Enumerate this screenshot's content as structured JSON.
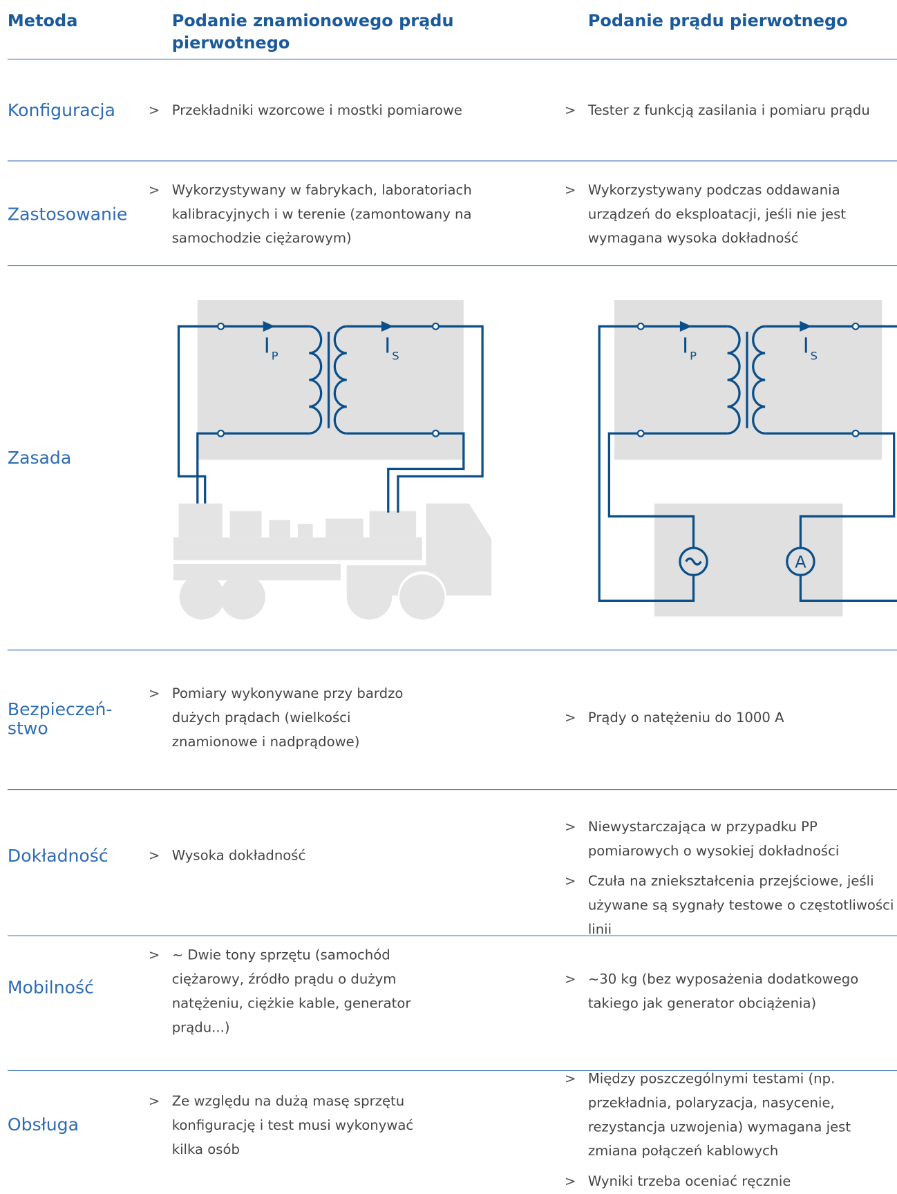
{
  "header": {
    "method": "Metoda",
    "col1": "Podanie znamionowego prądu pierwotnego",
    "col2": "Podanie prądu pierwotnego"
  },
  "bullet": ">",
  "rows": [
    {
      "label": "Konfiguracja",
      "col1": [
        "Przekładniki wzorcowe i mostki pomiarowe"
      ],
      "col2": [
        "Tester z funkcją zasilania i pomiaru prądu"
      ]
    },
    {
      "label": "Zastosowanie",
      "col1": [
        "Wykorzystywany w fabrykach, laboratoriach kalibracyjnych i w terenie (zamontowany na samochodzie ciężarowym)"
      ],
      "col2": [
        "Wykorzystywany podczas oddawania urządzeń do eksploatacji, jeśli nie jest wymagana wysoka dokładność"
      ]
    },
    {
      "label": "Zasada",
      "diagram": {
        "primary": {
          "symbol": "I",
          "index": "P"
        },
        "secondary": {
          "symbol": "I",
          "index": "S"
        },
        "meter": "A"
      }
    },
    {
      "label": "Bezpieczeń-\nstwo",
      "col1": [
        "Pomiary wykonywane przy bardzo dużych prądach (wielkości znamionowe i nadprądowe)"
      ],
      "col2": [
        "Prądy o natężeniu do 1000 A"
      ]
    },
    {
      "label": "Dokładność",
      "col1": [
        "Wysoka dokładność"
      ],
      "col2": [
        "Niewystarczająca w przypadku PP pomiarowych o wysokiej dokładności",
        "Czuła na zniekształcenia przejściowe, jeśli używane są sygnały testowe o częstotliwości linii"
      ]
    },
    {
      "label": "Mobilność",
      "col1": [
        "~ Dwie tony sprzętu (samochód ciężarowy, źródło prądu o dużym natężeniu, ciężkie kable, generator prądu...)"
      ],
      "col2": [
        "~30 kg (bez wyposażenia dodatkowego takiego jak generator obciążenia)"
      ]
    },
    {
      "label": "Obsługa",
      "col1": [
        "Ze względu na dużą masę sprzętu konfigurację i test musi wykonywać kilka osób"
      ],
      "col2": [
        "Między poszczególnymi testami (np. przekładnia, polaryzacja, nasycenie, rezystancja uzwojenia) wymagana jest zmiana połączeń kablowych",
        "Wyniki trzeba oceniać ręcznie"
      ]
    }
  ]
}
